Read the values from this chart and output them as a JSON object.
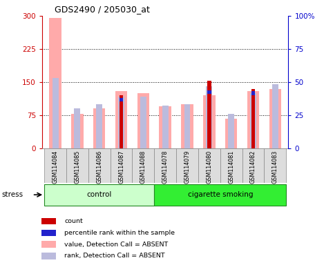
{
  "title": "GDS2490 / 205030_at",
  "samples": [
    "GSM114084",
    "GSM114085",
    "GSM114086",
    "GSM114087",
    "GSM114088",
    "GSM114078",
    "GSM114079",
    "GSM114080",
    "GSM114081",
    "GSM114082",
    "GSM114083"
  ],
  "groups": {
    "control": [
      "GSM114084",
      "GSM114085",
      "GSM114086",
      "GSM114087",
      "GSM114088"
    ],
    "cigarette smoking": [
      "GSM114078",
      "GSM114079",
      "GSM114080",
      "GSM114081",
      "GSM114082",
      "GSM114083"
    ]
  },
  "value_absent": [
    296,
    78,
    90,
    130,
    125,
    95,
    100,
    120,
    68,
    130,
    135
  ],
  "rank_absent": [
    160,
    90,
    100,
    118,
    118,
    97,
    100,
    140,
    78,
    125,
    145
  ],
  "count": [
    0,
    0,
    0,
    120,
    0,
    0,
    0,
    153,
    0,
    135,
    0
  ],
  "percentile_rank_pct": [
    0,
    0,
    0,
    38,
    0,
    0,
    0,
    44,
    0,
    43,
    0
  ],
  "ylim_left": [
    0,
    300
  ],
  "ylim_right": [
    0,
    100
  ],
  "yticks_left": [
    0,
    75,
    150,
    225,
    300
  ],
  "yticks_right": [
    0,
    25,
    50,
    75,
    100
  ],
  "color_count": "#cc0000",
  "color_percentile": "#2222cc",
  "color_value_absent": "#ffaaaa",
  "color_rank_absent": "#bbbbdd",
  "control_color": "#ccffcc",
  "smoking_color": "#33ee33",
  "left_axis_color": "#cc0000",
  "right_axis_color": "#0000cc",
  "sample_bg_color": "#dddddd",
  "fig_bg": "#ffffff",
  "grid_color": "black"
}
